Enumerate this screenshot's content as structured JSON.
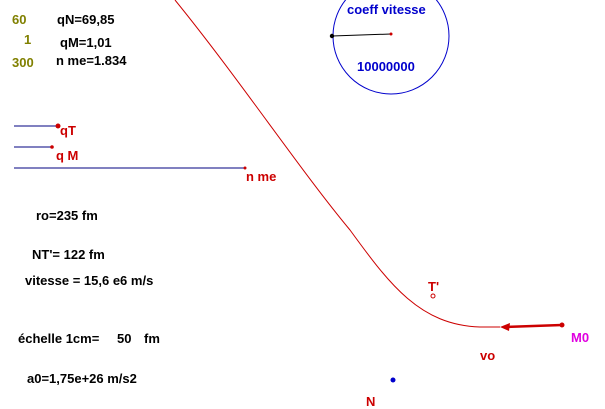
{
  "params": {
    "val_60": "60",
    "val_1": "1",
    "val_300": "300",
    "qN": "qN=69,85",
    "qM": "qM=1,01",
    "n_me": "n me=1.834"
  },
  "gauge": {
    "title": "coeff vitesse",
    "value": "10000000"
  },
  "bars": {
    "qT_label": "qT",
    "qM_label": "q M",
    "nme_label": "n me"
  },
  "info": {
    "ro": "ro=235 fm",
    "nt": "NT'= 122 fm",
    "vitesse": "vitesse = 15,6 e6 m/s",
    "echelle_label": "échelle 1cm=",
    "echelle_value": "50",
    "echelle_unit": "fm",
    "a0": "a0=1,75e+26 m/s2"
  },
  "sim": {
    "t_prime": "T'",
    "vo": "vo",
    "m0": "M0",
    "n": "N"
  },
  "colors": {
    "red": "#cc0000",
    "blue": "#0000cc",
    "magenta": "#e000e0",
    "olive": "#808000",
    "black": "#000000"
  }
}
